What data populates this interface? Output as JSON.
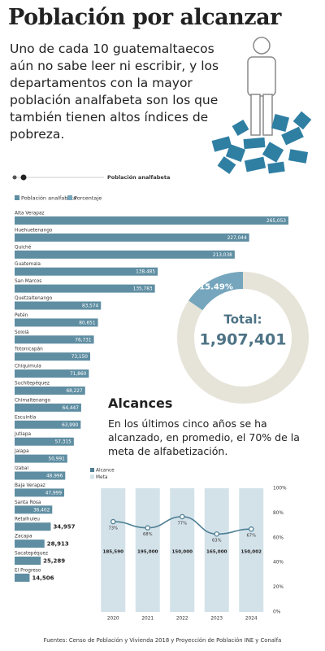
{
  "header": {
    "title": "Población por alcanzar",
    "intro": "Uno de cada 10 guatemaltaecos aún no sabe leer ni escribir, y los departamentos con la mayor población analfabeta son los que también tienen altos índices de pobreza."
  },
  "chart_data": [
    {
      "type": "bar",
      "orientation": "horizontal",
      "title": "Población analfabeta",
      "categories": [
        "Alta Verapaz",
        "Huehuetenango",
        "Quiché",
        "Guatemala",
        "San Marcos",
        "Quetzaltenango",
        "Petén",
        "Sololá",
        "Totonicapán",
        "Chiquimula",
        "Suchitepéquez",
        "Chimaltenango",
        "Escuintla",
        "Jutiapa",
        "Jalapa",
        "Izabal",
        "Baja Verapaz",
        "Santa Rosa",
        "Retalhuleu",
        "Zacapa",
        "Sacatepéquez",
        "El Progreso"
      ],
      "series": [
        {
          "name": "Población analfabeta",
          "color": "#5f8ea2",
          "values": [
            265053,
            227044,
            213038,
            138485,
            135783,
            83574,
            80651,
            76731,
            73150,
            71860,
            68227,
            64447,
            63990,
            57315,
            50991,
            48996,
            47999,
            36402,
            34957,
            28913,
            25289,
            14506
          ],
          "value_labels": [
            "265,053",
            "227,044",
            "213,038",
            "138,485",
            "135,783",
            "83,574",
            "80,651",
            "76,731",
            "73,150",
            "71,860",
            "68,227",
            "64,447",
            "63,990",
            "57,315",
            "50,991",
            "48,996",
            "47,999",
            "36,402",
            "34,957",
            "28,913",
            "25,289",
            "14,506"
          ]
        }
      ]
    },
    {
      "type": "pie",
      "donut": true,
      "series": [
        {
          "name": "Porcentaje",
          "color": "#75a6bd",
          "values": [
            15.49
          ],
          "value_labels": [
            "15.49%"
          ]
        }
      ],
      "remainder_color": "#e6e4d8",
      "center_label": "Total:",
      "center_value": "1,907,401"
    },
    {
      "type": "combo",
      "title": "Alcances",
      "subtitle": "En los últimos cinco años se ha alcanzado, en promedio, el 70% de la meta de alfabetización.",
      "categories": [
        "2020",
        "2021",
        "2022",
        "2023",
        "2024"
      ],
      "series": [
        {
          "name": "Alcance",
          "type": "line",
          "color": "#4f7f94",
          "values": [
            73,
            68,
            77,
            63,
            67
          ],
          "value_labels": [
            "73%",
            "68%",
            "77%",
            "63%",
            "67%"
          ]
        },
        {
          "name": "Meta",
          "type": "bar",
          "color": "#d3e2e9",
          "values": [
            185590,
            195000,
            150000,
            165000,
            150002
          ],
          "value_labels": [
            "185,590",
            "195,000",
            "150,000",
            "165,000",
            "150,002"
          ]
        }
      ],
      "ylim": [
        0,
        100
      ],
      "yticks": [
        {
          "value": 0,
          "label": "0%"
        },
        {
          "value": 20,
          "label": "20%"
        },
        {
          "value": 40,
          "label": "40%"
        },
        {
          "value": 60,
          "label": "60%"
        },
        {
          "value": 80,
          "label": "80%"
        },
        {
          "value": 100,
          "label": "100%"
        }
      ]
    }
  ],
  "footer": "Fuentes: Censo de Población y Vivienda 2018 y Proyección de Población INE y Conalfa"
}
